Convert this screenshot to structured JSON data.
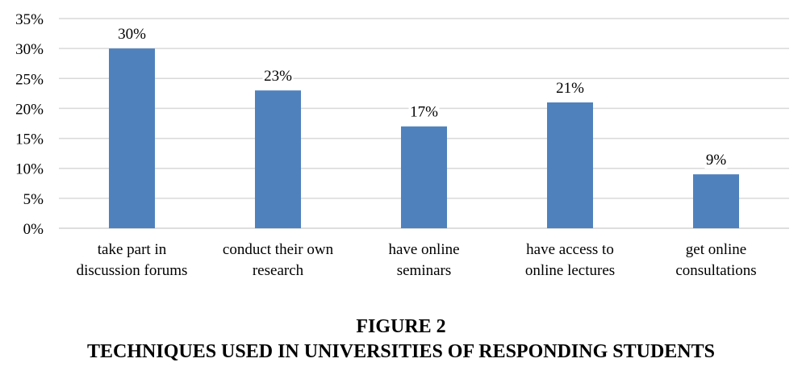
{
  "chart_data": {
    "type": "bar",
    "categories": [
      [
        "take part in",
        "discussion forums"
      ],
      [
        "conduct their own",
        "research"
      ],
      [
        "have online",
        "seminars"
      ],
      [
        "have access to",
        "online lectures"
      ],
      [
        "get online",
        "consultations"
      ]
    ],
    "values": [
      30,
      23,
      17,
      21,
      9
    ],
    "data_labels": [
      "30%",
      "23%",
      "17%",
      "21%",
      "9%"
    ],
    "yticks": [
      "0%",
      "5%",
      "10%",
      "15%",
      "20%",
      "25%",
      "30%",
      "35%"
    ],
    "ylim": [
      0,
      35
    ],
    "ystep": 5,
    "grid": true,
    "bar_color": "#4f81bd",
    "grid_color": "#d9d9d9"
  },
  "caption": {
    "figure_number": "FIGURE 2",
    "title": "TECHNIQUES USED IN UNIVERSITIES OF RESPONDING STUDENTS"
  }
}
